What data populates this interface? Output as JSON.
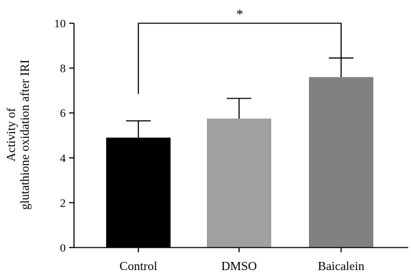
{
  "chart_data": {
    "type": "bar",
    "categories": [
      "Control",
      "DMSO",
      "Baicalein"
    ],
    "values": [
      4.9,
      5.75,
      7.6
    ],
    "error_upper": [
      5.65,
      6.65,
      8.45
    ],
    "bar_colors": [
      "#000000",
      "#A0A0A2",
      "#818181"
    ],
    "ylabel_lines": [
      "Activity of",
      "glutathione oxidation after IRI"
    ],
    "ylim": [
      0,
      10
    ],
    "yticks": [
      "0",
      "2",
      "4",
      "6",
      "8",
      "10"
    ],
    "grid": false,
    "legend": "none",
    "annotation": {
      "text": "*",
      "from_category": "Control",
      "to_category": "Baicalein",
      "level": 10,
      "from_drop": 6.85,
      "to_drop": 8.45
    }
  }
}
